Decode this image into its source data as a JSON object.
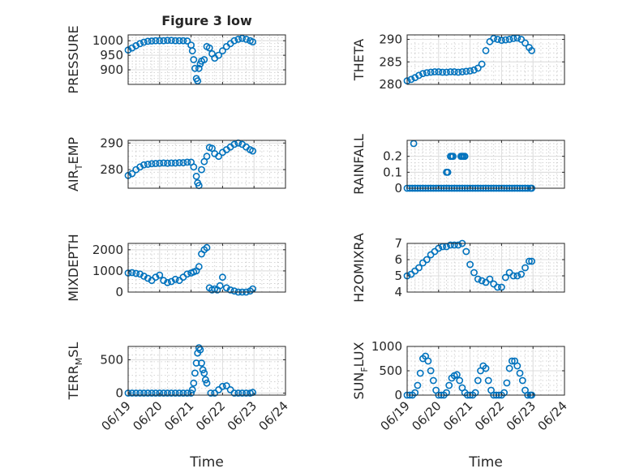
{
  "figure_title": "Figure 3 low",
  "marker_color": "#0072bd",
  "chart_data": [
    {
      "type": "scatter",
      "title": "Figure 3 low",
      "ylabel": "PRESSURE",
      "xlim": [
        "06/19",
        "06/24"
      ],
      "ylim": [
        850,
        1020
      ],
      "yticks": [
        900,
        950,
        1000
      ],
      "yticklabels": [
        "900",
        "950",
        "1000"
      ],
      "grid": true,
      "x": [
        "06/19 00:00",
        "06/19 03:00",
        "06/19 06:00",
        "06/19 09:00",
        "06/19 12:00",
        "06/19 15:00",
        "06/19 18:00",
        "06/19 21:00",
        "06/20 00:00",
        "06/20 03:00",
        "06/20 06:00",
        "06/20 09:00",
        "06/20 12:00",
        "06/20 15:00",
        "06/20 18:00",
        "06/20 21:00",
        "06/21 00:00",
        "06/21 01:00",
        "06/21 02:00",
        "06/21 03:00",
        "06/21 04:00",
        "06/21 05:00",
        "06/21 06:00",
        "06/21 07:00",
        "06/21 08:00",
        "06/21 10:00",
        "06/21 12:00",
        "06/21 14:00",
        "06/21 16:00",
        "06/21 18:00",
        "06/21 21:00",
        "06/22 00:00",
        "06/22 03:00",
        "06/22 06:00",
        "06/22 09:00",
        "06/22 12:00",
        "06/22 15:00",
        "06/22 18:00",
        "06/22 21:00",
        "06/22 23:00"
      ],
      "y": [
        968,
        975,
        983,
        990,
        995,
        998,
        999,
        1000,
        1000,
        1000,
        1001,
        1001,
        1000,
        1000,
        1000,
        999,
        985,
        965,
        935,
        905,
        870,
        862,
        905,
        920,
        930,
        935,
        980,
        975,
        955,
        940,
        950,
        965,
        980,
        990,
        1000,
        1005,
        1008,
        1005,
        1000,
        996
      ]
    },
    {
      "type": "scatter",
      "ylabel": "THETA",
      "xlim": [
        "06/19",
        "06/24"
      ],
      "ylim": [
        280,
        291
      ],
      "yticks": [
        280,
        285,
        290
      ],
      "yticklabels": [
        "280",
        "285",
        "290"
      ],
      "grid": true,
      "x": [
        "06/19 00:00",
        "06/19 03:00",
        "06/19 06:00",
        "06/19 09:00",
        "06/19 12:00",
        "06/19 15:00",
        "06/19 18:00",
        "06/19 21:00",
        "06/20 00:00",
        "06/20 03:00",
        "06/20 06:00",
        "06/20 09:00",
        "06/20 12:00",
        "06/20 15:00",
        "06/20 18:00",
        "06/20 21:00",
        "06/21 00:00",
        "06/21 03:00",
        "06/21 06:00",
        "06/21 09:00",
        "06/21 12:00",
        "06/21 15:00",
        "06/21 18:00",
        "06/21 21:00",
        "06/22 00:00",
        "06/22 03:00",
        "06/22 06:00",
        "06/22 09:00",
        "06/22 12:00",
        "06/22 15:00",
        "06/22 18:00",
        "06/22 21:00",
        "06/22 23:00"
      ],
      "y": [
        280.8,
        281.1,
        281.5,
        282.0,
        282.4,
        282.6,
        282.7,
        282.8,
        282.8,
        282.7,
        282.7,
        282.8,
        282.8,
        282.7,
        282.8,
        282.9,
        283.0,
        283.2,
        283.6,
        284.5,
        287.5,
        289.5,
        290.2,
        290.0,
        289.8,
        289.9,
        290.0,
        290.2,
        290.3,
        290.0,
        289.2,
        288.2,
        287.5
      ]
    },
    {
      "type": "scatter",
      "ylabel": "AIR_TEMP",
      "xlim": [
        "06/19",
        "06/24"
      ],
      "ylim": [
        273,
        291
      ],
      "yticks": [
        280,
        290
      ],
      "yticklabels": [
        "280",
        "290"
      ],
      "grid": true,
      "x": [
        "06/19 00:00",
        "06/19 03:00",
        "06/19 06:00",
        "06/19 09:00",
        "06/19 12:00",
        "06/19 15:00",
        "06/19 18:00",
        "06/19 21:00",
        "06/20 00:00",
        "06/20 03:00",
        "06/20 06:00",
        "06/20 09:00",
        "06/20 12:00",
        "06/20 15:00",
        "06/20 18:00",
        "06/20 21:00",
        "06/21 00:00",
        "06/21 02:00",
        "06/21 04:00",
        "06/21 05:00",
        "06/21 06:00",
        "06/21 08:00",
        "06/21 10:00",
        "06/21 12:00",
        "06/21 14:00",
        "06/21 16:00",
        "06/21 18:00",
        "06/21 21:00",
        "06/22 00:00",
        "06/22 03:00",
        "06/22 06:00",
        "06/22 09:00",
        "06/22 12:00",
        "06/22 15:00",
        "06/22 18:00",
        "06/22 21:00",
        "06/22 23:00"
      ],
      "y": [
        277.8,
        278.5,
        280.0,
        281.0,
        281.8,
        282.0,
        282.2,
        282.3,
        282.4,
        282.5,
        282.4,
        282.5,
        282.5,
        282.6,
        282.6,
        282.8,
        282.8,
        281.0,
        277.5,
        275.0,
        274.0,
        280.0,
        283.0,
        285.0,
        288.3,
        288.0,
        286.0,
        285.0,
        286.5,
        287.5,
        288.5,
        289.5,
        290.0,
        289.5,
        288.5,
        287.5,
        287.0
      ]
    },
    {
      "type": "scatter",
      "ylabel": "RAINFALL",
      "xlim": [
        "06/19",
        "06/24"
      ],
      "ylim": [
        0,
        0.3
      ],
      "yticks": [
        0,
        0.1,
        0.2
      ],
      "yticklabels": [
        "0",
        "0.1",
        "0.2"
      ],
      "grid": true,
      "x": [
        "06/19 00:00",
        "06/19 02:00",
        "06/19 04:00",
        "06/19 06:00",
        "06/19 08:00",
        "06/19 10:00",
        "06/19 12:00",
        "06/19 14:00",
        "06/19 16:00",
        "06/19 18:00",
        "06/19 20:00",
        "06/19 22:00",
        "06/20 00:00",
        "06/20 02:00",
        "06/20 04:00",
        "06/20 06:00",
        "06/20 08:00",
        "06/20 10:00",
        "06/20 12:00",
        "06/20 14:00",
        "06/20 16:00",
        "06/20 18:00",
        "06/20 20:00",
        "06/20 22:00",
        "06/21 00:00",
        "06/21 02:00",
        "06/21 04:00",
        "06/21 06:00",
        "06/21 08:00",
        "06/21 10:00",
        "06/21 12:00",
        "06/21 14:00",
        "06/21 16:00",
        "06/21 18:00",
        "06/21 20:00",
        "06/21 22:00",
        "06/22 00:00",
        "06/22 02:00",
        "06/22 04:00",
        "06/22 06:00",
        "06/22 08:00",
        "06/22 10:00",
        "06/22 12:00",
        "06/22 14:00",
        "06/22 16:00",
        "06/22 18:00",
        "06/22 20:00",
        "06/22 22:00",
        "06/22 23:00",
        "06/19 05:00",
        "06/20 06:00",
        "06/20 07:00",
        "06/20 09:00",
        "06/20 10:00",
        "06/20 11:00",
        "06/20 17:00",
        "06/20 18:00",
        "06/20 19:00",
        "06/20 20:00"
      ],
      "y": [
        0,
        0,
        0,
        0,
        0,
        0,
        0,
        0,
        0,
        0,
        0,
        0,
        0,
        0,
        0,
        0,
        0,
        0,
        0,
        0,
        0,
        0,
        0,
        0,
        0,
        0,
        0,
        0,
        0,
        0,
        0,
        0,
        0,
        0,
        0,
        0,
        0,
        0,
        0,
        0,
        0,
        0,
        0,
        0,
        0,
        0,
        0,
        0,
        0,
        0.28,
        0.1,
        0.1,
        0.2,
        0.2,
        0.2,
        0.2,
        0.2,
        0.2,
        0.2
      ]
    },
    {
      "type": "scatter",
      "ylabel": "MIXDEPTH",
      "xlim": [
        "06/19",
        "06/24"
      ],
      "ylim": [
        0,
        2300
      ],
      "yticks": [
        0,
        1000,
        2000
      ],
      "yticklabels": [
        "0",
        "1000",
        "2000"
      ],
      "grid": true,
      "x": [
        "06/19 00:00",
        "06/19 03:00",
        "06/19 06:00",
        "06/19 09:00",
        "06/19 12:00",
        "06/19 15:00",
        "06/19 18:00",
        "06/19 21:00",
        "06/20 00:00",
        "06/20 03:00",
        "06/20 06:00",
        "06/20 09:00",
        "06/20 12:00",
        "06/20 15:00",
        "06/20 18:00",
        "06/20 21:00",
        "06/21 00:00",
        "06/21 02:00",
        "06/21 04:00",
        "06/21 06:00",
        "06/21 08:00",
        "06/21 10:00",
        "06/21 12:00",
        "06/21 14:00",
        "06/21 16:00",
        "06/21 18:00",
        "06/21 20:00",
        "06/21 22:00",
        "06/22 00:00",
        "06/22 03:00",
        "06/22 06:00",
        "06/22 09:00",
        "06/22 12:00",
        "06/22 15:00",
        "06/22 18:00",
        "06/22 21:00",
        "06/22 23:00"
      ],
      "y": [
        900,
        920,
        880,
        850,
        750,
        650,
        550,
        700,
        800,
        550,
        450,
        500,
        600,
        550,
        700,
        850,
        900,
        950,
        1000,
        1200,
        1800,
        2000,
        2100,
        200,
        100,
        150,
        100,
        300,
        700,
        200,
        100,
        50,
        0,
        0,
        0,
        50,
        150
      ]
    },
    {
      "type": "scatter",
      "ylabel": "H2OMIXRA",
      "xlim": [
        "06/19",
        "06/24"
      ],
      "ylim": [
        4,
        7
      ],
      "yticks": [
        4,
        5,
        6,
        7
      ],
      "yticklabels": [
        "4",
        "5",
        "6",
        "7"
      ],
      "grid": true,
      "x": [
        "06/19 00:00",
        "06/19 03:00",
        "06/19 06:00",
        "06/19 09:00",
        "06/19 12:00",
        "06/19 15:00",
        "06/19 18:00",
        "06/19 21:00",
        "06/20 00:00",
        "06/20 03:00",
        "06/20 06:00",
        "06/20 09:00",
        "06/20 12:00",
        "06/20 15:00",
        "06/20 18:00",
        "06/20 21:00",
        "06/21 00:00",
        "06/21 03:00",
        "06/21 06:00",
        "06/21 09:00",
        "06/21 12:00",
        "06/21 15:00",
        "06/21 18:00",
        "06/21 21:00",
        "06/22 00:00",
        "06/22 03:00",
        "06/22 06:00",
        "06/22 09:00",
        "06/22 12:00",
        "06/22 15:00",
        "06/22 18:00",
        "06/22 21:00",
        "06/22 23:00"
      ],
      "y": [
        5.0,
        5.1,
        5.3,
        5.5,
        5.8,
        6.0,
        6.3,
        6.5,
        6.7,
        6.8,
        6.8,
        6.9,
        6.9,
        6.9,
        7.0,
        6.5,
        5.7,
        5.2,
        4.8,
        4.7,
        4.6,
        4.8,
        4.5,
        4.3,
        4.3,
        4.9,
        5.2,
        5.0,
        5.0,
        5.1,
        5.5,
        5.9,
        5.9
      ]
    },
    {
      "type": "scatter",
      "ylabel": "TERR_MSL",
      "xlim": [
        "06/19",
        "06/24"
      ],
      "ylim": [
        -30,
        700
      ],
      "yticks": [
        0,
        500
      ],
      "yticklabels": [
        "0",
        "500"
      ],
      "grid": true,
      "x": [
        "06/19 00:00",
        "06/19 03:00",
        "06/19 06:00",
        "06/19 09:00",
        "06/19 12:00",
        "06/19 15:00",
        "06/19 18:00",
        "06/19 21:00",
        "06/20 00:00",
        "06/20 03:00",
        "06/20 06:00",
        "06/20 09:00",
        "06/20 12:00",
        "06/20 15:00",
        "06/20 18:00",
        "06/20 21:00",
        "06/21 00:00",
        "06/21 01:00",
        "06/21 02:00",
        "06/21 03:00",
        "06/21 04:00",
        "06/21 05:00",
        "06/21 06:00",
        "06/21 07:00",
        "06/21 08:00",
        "06/21 09:00",
        "06/21 10:00",
        "06/21 11:00",
        "06/21 12:00",
        "06/21 15:00",
        "06/21 18:00",
        "06/21 21:00",
        "06/22 00:00",
        "06/22 03:00",
        "06/22 06:00",
        "06/22 09:00",
        "06/22 12:00",
        "06/22 15:00",
        "06/22 18:00",
        "06/22 21:00",
        "06/22 23:00"
      ],
      "y": [
        0,
        0,
        0,
        0,
        0,
        0,
        0,
        0,
        0,
        0,
        0,
        0,
        0,
        0,
        0,
        0,
        0,
        50,
        150,
        300,
        450,
        600,
        680,
        650,
        450,
        350,
        300,
        200,
        150,
        0,
        0,
        50,
        100,
        110,
        50,
        0,
        0,
        0,
        0,
        0,
        10
      ]
    },
    {
      "type": "scatter",
      "ylabel": "SUN_FLUX",
      "xlim": [
        "06/19",
        "06/24"
      ],
      "ylim": [
        0,
        1000
      ],
      "yticks": [
        0,
        500,
        1000
      ],
      "yticklabels": [
        "0",
        "500",
        "1000"
      ],
      "grid": true,
      "x": [
        "06/19 00:00",
        "06/19 02:00",
        "06/19 04:00",
        "06/19 06:00",
        "06/19 08:00",
        "06/19 10:00",
        "06/19 12:00",
        "06/19 14:00",
        "06/19 16:00",
        "06/19 18:00",
        "06/19 20:00",
        "06/19 22:00",
        "06/20 00:00",
        "06/20 02:00",
        "06/20 04:00",
        "06/20 06:00",
        "06/20 08:00",
        "06/20 10:00",
        "06/20 12:00",
        "06/20 14:00",
        "06/20 16:00",
        "06/20 18:00",
        "06/20 20:00",
        "06/20 22:00",
        "06/21 00:00",
        "06/21 02:00",
        "06/21 04:00",
        "06/21 06:00",
        "06/21 08:00",
        "06/21 10:00",
        "06/21 12:00",
        "06/21 14:00",
        "06/21 16:00",
        "06/21 18:00",
        "06/21 20:00",
        "06/21 22:00",
        "06/22 00:00",
        "06/22 02:00",
        "06/22 04:00",
        "06/22 06:00",
        "06/22 08:00",
        "06/22 10:00",
        "06/22 12:00",
        "06/22 14:00",
        "06/22 16:00",
        "06/22 18:00",
        "06/22 20:00",
        "06/22 22:00",
        "06/22 23:00"
      ],
      "y": [
        0,
        0,
        0,
        50,
        200,
        450,
        750,
        800,
        700,
        500,
        300,
        100,
        0,
        0,
        0,
        50,
        200,
        350,
        400,
        420,
        300,
        150,
        50,
        0,
        0,
        0,
        50,
        300,
        500,
        600,
        550,
        300,
        100,
        0,
        0,
        0,
        0,
        50,
        250,
        550,
        700,
        700,
        600,
        450,
        300,
        100,
        0,
        0,
        0
      ]
    }
  ],
  "panels": [
    {
      "ylabel": "PRESSURE"
    },
    {
      "ylabel": "THETA"
    },
    {
      "ylabel": "AIR_TEMP"
    },
    {
      "ylabel": "RAINFALL"
    },
    {
      "ylabel": "MIXDEPTH"
    },
    {
      "ylabel": "H2OMIXRA"
    },
    {
      "ylabel": "TERR_MSL"
    },
    {
      "ylabel": "SUN_FLUX"
    }
  ],
  "xticklabels": [
    "06/19",
    "06/20",
    "06/21",
    "06/22",
    "06/23",
    "06/24"
  ],
  "xlabel": "Time"
}
